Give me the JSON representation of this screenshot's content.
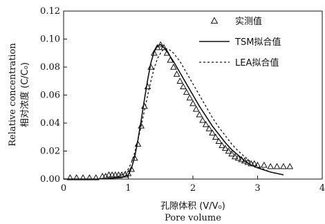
{
  "chart_data": {
    "type": "line",
    "title": "",
    "xlabel_cn": "孔隙体积 (V/V₀)",
    "xlabel_en": "Pore volume",
    "ylabel_en": "Relative concentration",
    "ylabel_cn": "相对浓度 (C/C₀)",
    "xlim": [
      0,
      4
    ],
    "ylim": [
      0,
      0.12
    ],
    "x_ticks": [
      0,
      1,
      2,
      3,
      4
    ],
    "y_ticks": [
      0.0,
      0.02,
      0.04,
      0.06,
      0.08,
      0.1,
      0.12
    ],
    "x_tick_labels": [
      "0",
      "1",
      "2",
      "3",
      "4"
    ],
    "y_tick_labels": [
      "0.00",
      "0.02",
      "0.04",
      "0.06",
      "0.08",
      "0.10",
      "0.12"
    ],
    "legend_position": "top-right",
    "series": [
      {
        "name": "实测值",
        "style": "triangle-markers",
        "color": "#111111",
        "x": [
          0.1,
          0.2,
          0.3,
          0.4,
          0.5,
          0.6,
          0.65,
          0.7,
          0.75,
          0.8,
          0.85,
          0.9,
          0.95,
          1.0,
          1.05,
          1.1,
          1.15,
          1.2,
          1.25,
          1.3,
          1.35,
          1.4,
          1.45,
          1.5,
          1.55,
          1.6,
          1.65,
          1.7,
          1.75,
          1.8,
          1.85,
          1.9,
          1.95,
          2.0,
          2.05,
          2.1,
          2.15,
          2.2,
          2.25,
          2.3,
          2.35,
          2.4,
          2.45,
          2.5,
          2.55,
          2.6,
          2.65,
          2.7,
          2.75,
          2.8,
          2.85,
          2.9,
          2.95,
          3.0,
          3.1,
          3.2,
          3.3,
          3.4,
          3.5
        ],
        "y": [
          0.001,
          0.001,
          0.001,
          0.001,
          0.001,
          0.002,
          0.002,
          0.003,
          0.003,
          0.003,
          0.003,
          0.003,
          0.003,
          0.004,
          0.007,
          0.015,
          0.025,
          0.038,
          0.052,
          0.066,
          0.08,
          0.09,
          0.094,
          0.096,
          0.094,
          0.09,
          0.085,
          0.08,
          0.075,
          0.07,
          0.066,
          0.062,
          0.058,
          0.054,
          0.05,
          0.046,
          0.042,
          0.039,
          0.036,
          0.033,
          0.03,
          0.027,
          0.024,
          0.022,
          0.02,
          0.018,
          0.016,
          0.015,
          0.014,
          0.013,
          0.012,
          0.011,
          0.011,
          0.01,
          0.01,
          0.009,
          0.009,
          0.009,
          0.009
        ]
      },
      {
        "name": "TSM拟合值",
        "style": "solid",
        "color": "#111111",
        "x": [
          0.0,
          0.5,
          0.9,
          1.0,
          1.05,
          1.1,
          1.15,
          1.2,
          1.25,
          1.3,
          1.35,
          1.4,
          1.45,
          1.5,
          1.55,
          1.6,
          1.7,
          1.8,
          1.9,
          2.0,
          2.1,
          2.2,
          2.3,
          2.4,
          2.5,
          2.6,
          2.7,
          2.8,
          2.9,
          3.0,
          3.2,
          3.4
        ],
        "y": [
          0.0,
          0.0,
          0.001,
          0.003,
          0.008,
          0.016,
          0.028,
          0.042,
          0.057,
          0.071,
          0.083,
          0.091,
          0.095,
          0.096,
          0.094,
          0.091,
          0.084,
          0.076,
          0.068,
          0.06,
          0.052,
          0.045,
          0.038,
          0.032,
          0.026,
          0.021,
          0.017,
          0.013,
          0.01,
          0.008,
          0.005,
          0.003
        ]
      },
      {
        "name": "LEA拟合值",
        "style": "dashed",
        "color": "#111111",
        "x": [
          0.0,
          0.5,
          0.8,
          0.9,
          1.0,
          1.05,
          1.1,
          1.15,
          1.2,
          1.25,
          1.3,
          1.35,
          1.4,
          1.45,
          1.5,
          1.55,
          1.6,
          1.65,
          1.7,
          1.8,
          1.9,
          2.0,
          2.1,
          2.2,
          2.3,
          2.4,
          2.5,
          2.6,
          2.7,
          2.8,
          2.9,
          3.0,
          3.2,
          3.4
        ],
        "y": [
          0.0,
          0.0,
          0.001,
          0.003,
          0.007,
          0.012,
          0.019,
          0.028,
          0.038,
          0.049,
          0.06,
          0.07,
          0.079,
          0.086,
          0.09,
          0.093,
          0.093,
          0.092,
          0.09,
          0.084,
          0.076,
          0.068,
          0.06,
          0.052,
          0.044,
          0.037,
          0.031,
          0.025,
          0.02,
          0.016,
          0.012,
          0.009,
          0.005,
          0.003
        ]
      }
    ]
  }
}
